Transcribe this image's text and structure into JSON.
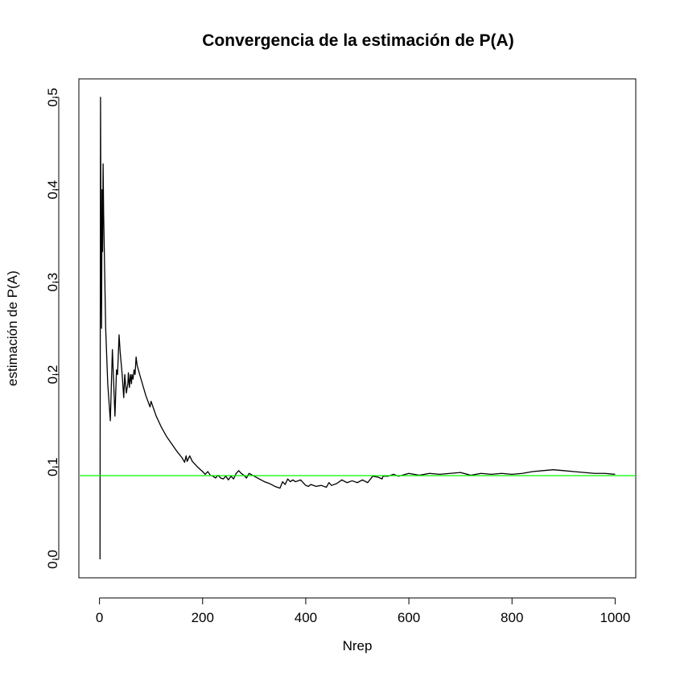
{
  "chart_data": {
    "type": "line",
    "title": "Convergencia de la estimación de P(A)",
    "xlabel": "Nrep",
    "ylabel": "estimación de P(A)",
    "xlim": [
      -40,
      1040
    ],
    "ylim": [
      -0.02,
      0.52
    ],
    "xticks": [
      0,
      200,
      400,
      600,
      800,
      1000
    ],
    "xtick_labels": [
      "0",
      "200",
      "400",
      "600",
      "800",
      "1000"
    ],
    "yticks": [
      0.0,
      0.1,
      0.2,
      0.3,
      0.4,
      0.5
    ],
    "ytick_labels": [
      "0.0",
      "0.1",
      "0.2",
      "0.3",
      "0.4",
      "0.5"
    ],
    "grid": false,
    "series": [
      {
        "color": "#000000",
        "x": [
          1,
          2,
          3,
          4,
          5,
          6,
          7,
          8,
          12,
          16,
          21,
          25,
          30,
          33,
          35,
          38,
          40,
          44,
          47,
          49,
          52,
          55,
          56,
          58,
          60,
          62,
          63,
          65,
          67,
          69,
          71,
          73,
          80,
          90,
          98,
          100,
          110,
          120,
          130,
          140,
          150,
          160,
          165,
          168,
          170,
          175,
          180,
          190,
          200,
          205,
          210,
          215,
          220,
          225,
          230,
          235,
          240,
          245,
          250,
          255,
          260,
          265,
          270,
          275,
          280,
          285,
          290,
          300,
          310,
          320,
          330,
          340,
          350,
          355,
          360,
          365,
          370,
          375,
          380,
          390,
          400,
          405,
          410,
          420,
          430,
          440,
          445,
          450,
          460,
          470,
          480,
          490,
          500,
          510,
          520,
          530,
          540,
          548,
          550,
          560,
          570,
          580,
          600,
          620,
          640,
          660,
          680,
          700,
          720,
          740,
          760,
          780,
          800,
          820,
          840,
          860,
          880,
          900,
          920,
          940,
          960,
          980,
          1000
        ],
        "y": [
          0.0,
          0.5,
          0.33,
          0.25,
          0.4,
          0.333,
          0.428,
          0.375,
          0.25,
          0.19,
          0.15,
          0.227,
          0.155,
          0.205,
          0.2,
          0.243,
          0.225,
          0.2,
          0.175,
          0.2,
          0.18,
          0.19,
          0.202,
          0.186,
          0.2,
          0.19,
          0.2,
          0.195,
          0.205,
          0.2,
          0.219,
          0.21,
          0.196,
          0.177,
          0.165,
          0.171,
          0.155,
          0.143,
          0.133,
          0.125,
          0.117,
          0.11,
          0.105,
          0.112,
          0.106,
          0.112,
          0.106,
          0.1,
          0.095,
          0.092,
          0.095,
          0.091,
          0.09,
          0.088,
          0.091,
          0.088,
          0.087,
          0.09,
          0.086,
          0.09,
          0.087,
          0.093,
          0.096,
          0.093,
          0.091,
          0.088,
          0.093,
          0.09,
          0.087,
          0.084,
          0.082,
          0.079,
          0.077,
          0.084,
          0.081,
          0.087,
          0.084,
          0.086,
          0.084,
          0.086,
          0.08,
          0.079,
          0.081,
          0.079,
          0.08,
          0.078,
          0.083,
          0.08,
          0.082,
          0.086,
          0.083,
          0.085,
          0.083,
          0.086,
          0.083,
          0.09,
          0.089,
          0.087,
          0.09,
          0.09,
          0.092,
          0.09,
          0.093,
          0.091,
          0.093,
          0.092,
          0.093,
          0.094,
          0.091,
          0.093,
          0.092,
          0.093,
          0.092,
          0.093,
          0.095,
          0.096,
          0.097,
          0.096,
          0.095,
          0.094,
          0.093,
          0.093,
          0.092
        ]
      },
      {
        "color": "#00ff00",
        "type": "hline",
        "y": 0.0906
      }
    ]
  }
}
